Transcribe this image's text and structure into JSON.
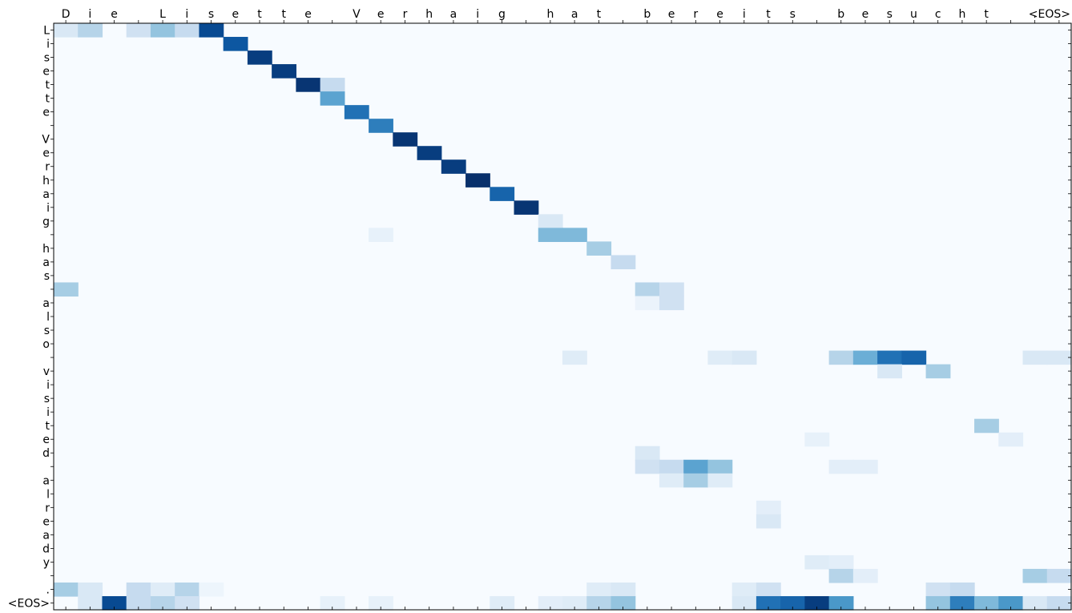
{
  "chart_data": {
    "type": "heatmap",
    "colormap": "Blues",
    "x_ticks": [
      "D",
      "i",
      "e",
      " ",
      "L",
      "i",
      "s",
      "e",
      "t",
      "t",
      "e",
      " ",
      "V",
      "e",
      "r",
      "h",
      "a",
      "i",
      "g",
      " ",
      "h",
      "a",
      "t",
      " ",
      "b",
      "e",
      "r",
      "e",
      "i",
      "t",
      "s",
      " ",
      "b",
      "e",
      "s",
      "u",
      "c",
      "h",
      "t",
      " ",
      ".",
      "<EOS>"
    ],
    "y_ticks": [
      "L",
      "i",
      "s",
      "e",
      "t",
      "t",
      "e",
      " ",
      "V",
      "e",
      "r",
      "h",
      "a",
      "i",
      "g",
      " ",
      "h",
      "a",
      "s",
      " ",
      "a",
      "l",
      "s",
      "o",
      " ",
      "v",
      "i",
      "s",
      "i",
      "t",
      "e",
      "d",
      " ",
      "a",
      "l",
      "r",
      "e",
      "a",
      "d",
      "y",
      " ",
      ".",
      "<EOS>"
    ],
    "cells": [
      [
        0,
        0,
        0.15
      ],
      [
        0,
        1,
        0.3
      ],
      [
        0,
        3,
        0.2
      ],
      [
        0,
        4,
        0.4
      ],
      [
        0,
        5,
        0.25
      ],
      [
        0,
        6,
        0.9
      ],
      [
        1,
        7,
        0.85
      ],
      [
        2,
        8,
        0.95
      ],
      [
        3,
        9,
        0.95
      ],
      [
        4,
        10,
        0.98
      ],
      [
        4,
        11,
        0.25
      ],
      [
        5,
        11,
        0.55
      ],
      [
        6,
        12,
        0.75
      ],
      [
        7,
        13,
        0.7
      ],
      [
        8,
        14,
        0.98
      ],
      [
        9,
        15,
        0.95
      ],
      [
        10,
        16,
        0.95
      ],
      [
        11,
        17,
        1.0
      ],
      [
        12,
        18,
        0.8
      ],
      [
        13,
        19,
        0.98
      ],
      [
        14,
        20,
        0.15
      ],
      [
        15,
        20,
        0.45
      ],
      [
        15,
        21,
        0.45
      ],
      [
        15,
        13,
        0.08
      ],
      [
        16,
        22,
        0.35
      ],
      [
        17,
        23,
        0.25
      ],
      [
        19,
        0,
        0.35
      ],
      [
        19,
        24,
        0.3
      ],
      [
        19,
        25,
        0.2
      ],
      [
        20,
        24,
        0.06
      ],
      [
        20,
        25,
        0.2
      ],
      [
        24,
        32,
        0.3
      ],
      [
        24,
        33,
        0.5
      ],
      [
        24,
        34,
        0.75
      ],
      [
        24,
        35,
        0.8
      ],
      [
        24,
        40,
        0.15
      ],
      [
        24,
        41,
        0.15
      ],
      [
        24,
        27,
        0.12
      ],
      [
        24,
        28,
        0.15
      ],
      [
        24,
        21,
        0.12
      ],
      [
        25,
        34,
        0.15
      ],
      [
        25,
        36,
        0.35
      ],
      [
        29,
        38,
        0.35
      ],
      [
        30,
        31,
        0.08
      ],
      [
        30,
        39,
        0.1
      ],
      [
        31,
        24,
        0.15
      ],
      [
        32,
        24,
        0.2
      ],
      [
        32,
        25,
        0.25
      ],
      [
        32,
        26,
        0.55
      ],
      [
        32,
        27,
        0.4
      ],
      [
        32,
        32,
        0.1
      ],
      [
        32,
        33,
        0.1
      ],
      [
        33,
        25,
        0.12
      ],
      [
        33,
        26,
        0.35
      ],
      [
        33,
        27,
        0.12
      ],
      [
        35,
        29,
        0.1
      ],
      [
        36,
        29,
        0.15
      ],
      [
        39,
        31,
        0.12
      ],
      [
        39,
        32,
        0.1
      ],
      [
        40,
        32,
        0.3
      ],
      [
        40,
        33,
        0.1
      ],
      [
        40,
        40,
        0.35
      ],
      [
        40,
        41,
        0.25
      ],
      [
        41,
        0,
        0.35
      ],
      [
        41,
        1,
        0.15
      ],
      [
        41,
        3,
        0.25
      ],
      [
        41,
        4,
        0.12
      ],
      [
        41,
        5,
        0.3
      ],
      [
        41,
        6,
        0.05
      ],
      [
        41,
        22,
        0.12
      ],
      [
        41,
        23,
        0.15
      ],
      [
        41,
        28,
        0.12
      ],
      [
        41,
        29,
        0.2
      ],
      [
        41,
        36,
        0.2
      ],
      [
        41,
        37,
        0.25
      ],
      [
        42,
        1,
        0.15
      ],
      [
        42,
        2,
        0.9
      ],
      [
        42,
        3,
        0.25
      ],
      [
        42,
        4,
        0.3
      ],
      [
        42,
        5,
        0.2
      ],
      [
        42,
        11,
        0.08
      ],
      [
        42,
        13,
        0.08
      ],
      [
        42,
        18,
        0.12
      ],
      [
        42,
        20,
        0.1
      ],
      [
        42,
        21,
        0.12
      ],
      [
        42,
        22,
        0.3
      ],
      [
        42,
        23,
        0.4
      ],
      [
        42,
        28,
        0.15
      ],
      [
        42,
        29,
        0.75
      ],
      [
        42,
        30,
        0.8
      ],
      [
        42,
        31,
        0.95
      ],
      [
        42,
        32,
        0.6
      ],
      [
        42,
        36,
        0.4
      ],
      [
        42,
        37,
        0.7
      ],
      [
        42,
        38,
        0.45
      ],
      [
        42,
        39,
        0.6
      ],
      [
        42,
        40,
        0.15
      ],
      [
        42,
        41,
        0.25
      ]
    ]
  }
}
